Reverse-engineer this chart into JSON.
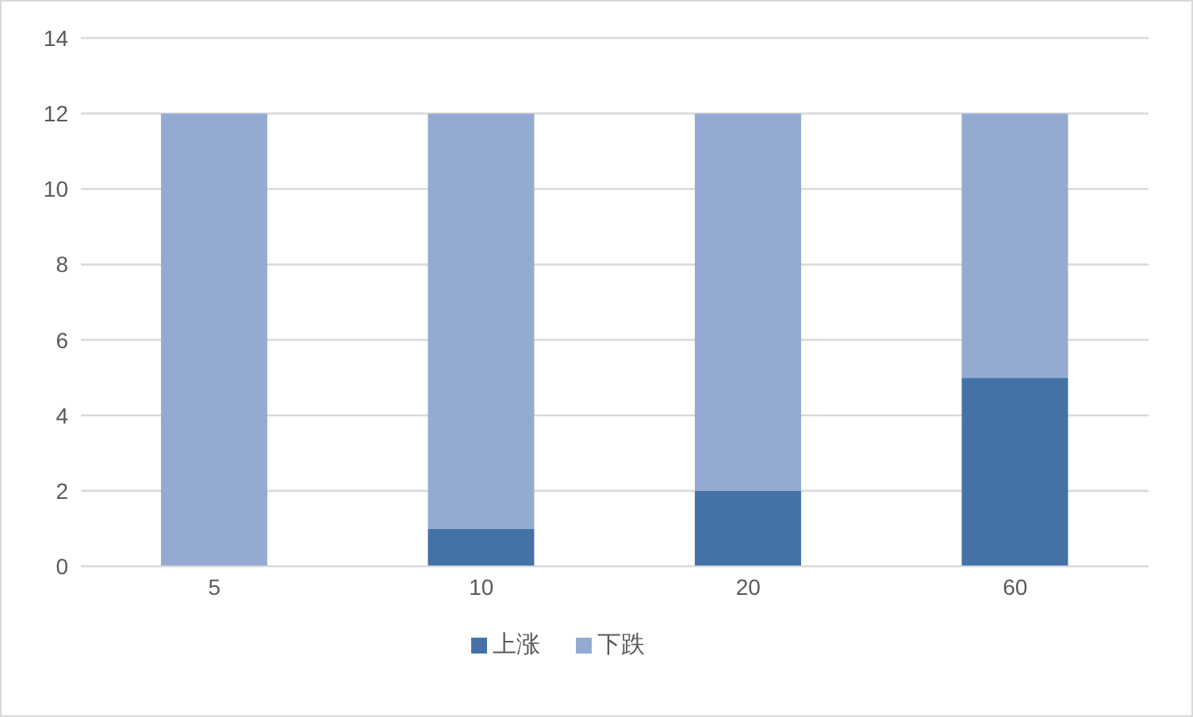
{
  "chart_data": {
    "type": "bar",
    "categories": [
      "5",
      "10",
      "20",
      "60"
    ],
    "series": [
      {
        "name": "上涨",
        "color": "#4472a6",
        "values": [
          0,
          1,
          2,
          5
        ]
      },
      {
        "name": "下跌",
        "color": "#95aad1",
        "values": [
          12,
          11,
          10,
          7
        ]
      }
    ],
    "stacked": true,
    "ylim": [
      0,
      14
    ],
    "yticks": [
      0,
      2,
      4,
      6,
      8,
      10,
      12,
      14
    ],
    "grid": "y",
    "legend": "bottom"
  }
}
